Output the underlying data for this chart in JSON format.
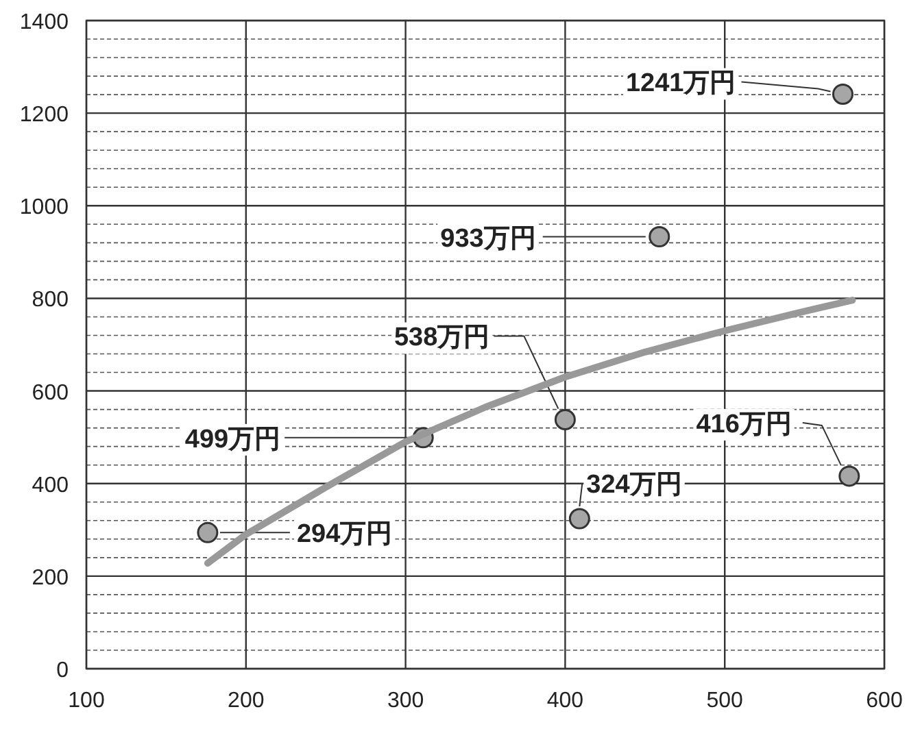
{
  "chart_data": {
    "type": "scatter",
    "xlim": [
      100,
      600
    ],
    "xticks": [
      100,
      200,
      300,
      400,
      500,
      600
    ],
    "ylim": [
      0,
      1400
    ],
    "yticks": [
      0,
      {
        "value": 40,
        "label": null
      },
      {
        "value": 80,
        "label": null
      },
      {
        "value": 120,
        "label": null
      },
      {
        "value": 160,
        "label": null
      },
      200,
      {
        "value": 240,
        "label": null
      },
      {
        "value": 280,
        "label": null
      },
      {
        "value": 320,
        "label": null
      },
      {
        "value": 360,
        "label": null
      },
      400,
      {
        "value": 440,
        "label": null
      },
      {
        "value": 480,
        "label": null
      },
      {
        "value": 520,
        "label": null
      },
      {
        "value": 560,
        "label": null
      },
      600,
      {
        "value": 640,
        "label": null
      },
      {
        "value": 680,
        "label": null
      },
      {
        "value": 720,
        "label": null
      },
      {
        "value": 760,
        "label": null
      },
      800,
      {
        "value": 840,
        "label": null
      },
      {
        "value": 880,
        "label": null
      },
      {
        "value": 920,
        "label": null
      },
      {
        "value": 960,
        "label": null
      },
      1000,
      {
        "value": 1040,
        "label": null
      },
      {
        "value": 1080,
        "label": null
      },
      {
        "value": 1120,
        "label": null
      },
      {
        "value": 1160,
        "label": null
      },
      1200,
      {
        "value": 1240,
        "label": null
      },
      {
        "value": 1280,
        "label": null
      },
      {
        "value": 1320,
        "label": null
      },
      {
        "value": 1360,
        "label": null
      },
      1400
    ],
    "grid": true,
    "series": [
      {
        "color": "#a6a6a6",
        "marker": "circle",
        "x": [
          176,
          311,
          400,
          409,
          459,
          574,
          578
        ],
        "values": [
          294,
          499,
          538,
          324,
          933,
          1241,
          416
        ],
        "value_labels": [
          "294万円",
          "499万円",
          "538万円",
          "324万円",
          "933万円",
          "1241万円",
          "416万円"
        ]
      },
      {
        "type": "line",
        "color": "#999999",
        "marker": "none",
        "line_style": "solid",
        "x": [
          176,
          200,
          250,
          300,
          350,
          400,
          450,
          500,
          550,
          580
        ],
        "values": [
          228,
          290,
          392,
          490,
          565,
          630,
          684,
          730,
          772,
          796
        ]
      }
    ]
  }
}
